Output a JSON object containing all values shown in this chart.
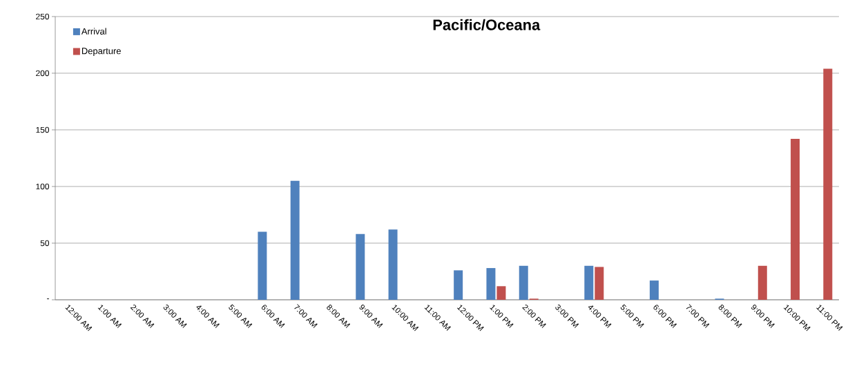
{
  "chart_data": {
    "type": "bar",
    "title": "Pacific/Oceana",
    "categories": [
      "12:00 AM",
      "1:00 AM",
      "2:00 AM",
      "3:00 AM",
      "4:00 AM",
      "5:00 AM",
      "6:00 AM",
      "7:00 AM",
      "8:00 AM",
      "9:00 AM",
      "10:00 AM",
      "11:00 AM",
      "12:00 PM",
      "1:00 PM",
      "2:00 PM",
      "3:00 PM",
      "4:00 PM",
      "5:00 PM",
      "6:00 PM",
      "7:00 PM",
      "8:00 PM",
      "9:00 PM",
      "10:00 PM",
      "11:00 PM"
    ],
    "series": [
      {
        "name": "Arrival",
        "color": "#4f81bd",
        "values": [
          0,
          0,
          0,
          0,
          0,
          0,
          60,
          105,
          0,
          58,
          62,
          0,
          26,
          28,
          30,
          0,
          30,
          0,
          17,
          0,
          1,
          0,
          0,
          0
        ]
      },
      {
        "name": "Departure",
        "color": "#c0504d",
        "values": [
          0,
          0,
          0,
          0,
          0,
          0,
          0,
          0,
          0,
          0,
          0,
          0,
          0,
          12,
          1,
          0,
          29,
          0,
          0,
          0,
          0,
          30,
          142,
          204
        ]
      }
    ],
    "ylim": [
      0,
      250
    ],
    "yticks": [
      {
        "value": 0,
        "label": "-"
      },
      50,
      100,
      150,
      200,
      250
    ],
    "grid": "y",
    "legend": "top left"
  }
}
